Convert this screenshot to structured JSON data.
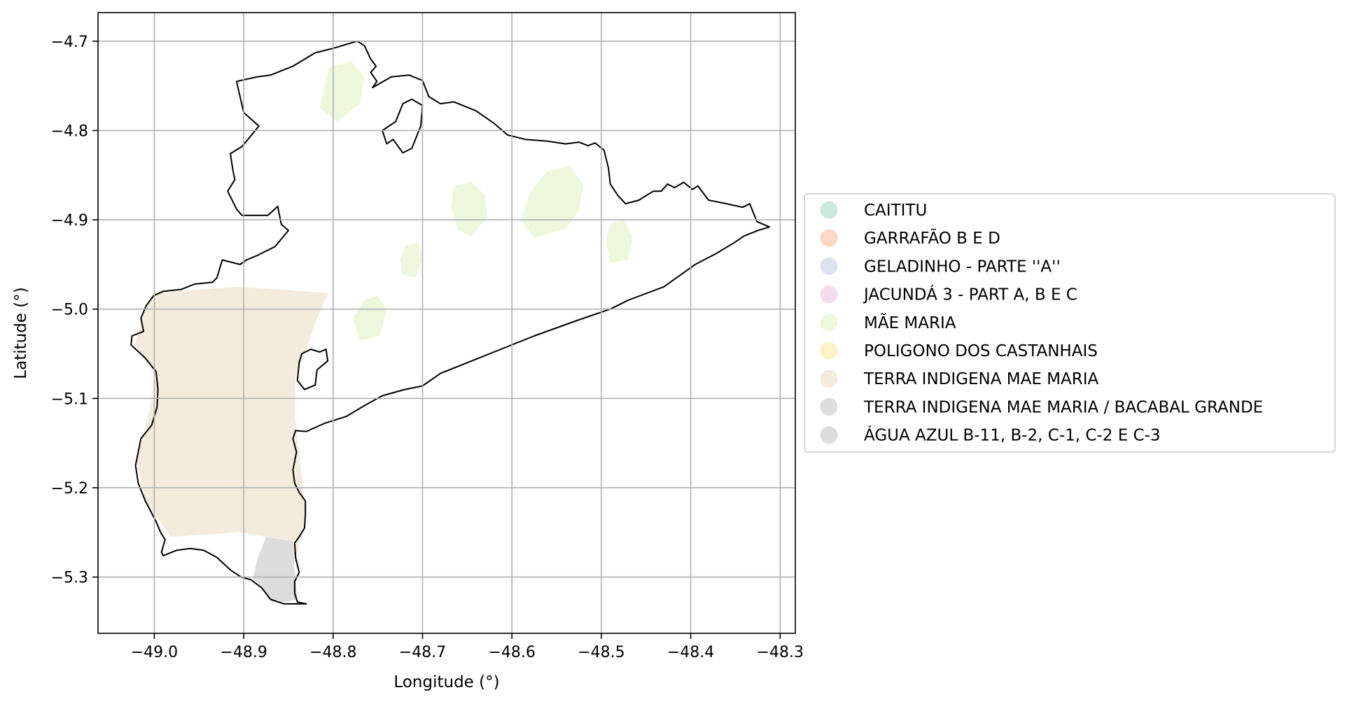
{
  "axes": {
    "xlabel": "Longitude (°)",
    "ylabel": "Latitude (°)",
    "xlim": [
      -49.063,
      -48.283
    ],
    "ylim": [
      -5.363,
      -4.668
    ],
    "x_ticks": [
      -49.0,
      -48.9,
      -48.8,
      -48.7,
      -48.6,
      -48.5,
      -48.4,
      -48.3
    ],
    "y_ticks": [
      -4.7,
      -4.8,
      -4.9,
      -5.0,
      -5.1,
      -5.2,
      -5.3
    ],
    "x_tick_labels": [
      "−49.0",
      "−48.9",
      "−48.8",
      "−48.7",
      "−48.6",
      "−48.5",
      "−48.4",
      "−48.3"
    ],
    "y_tick_labels": [
      "−4.7",
      "−4.8",
      "−4.9",
      "−5.0",
      "−5.1",
      "−5.2",
      "−5.3"
    ],
    "grid": true
  },
  "legend": {
    "placement": "center-right, outside plot",
    "items": [
      {
        "label": "CAITITU",
        "color": "#cbe9db"
      },
      {
        "label": "GARRAFÃO B E D",
        "color": "#fbd9c4"
      },
      {
        "label": "GELADINHO - PARTE ''A''",
        "color": "#dde2ef"
      },
      {
        "label": "JACUNDÁ 3 - PART A, B E C",
        "color": "#f4dcee"
      },
      {
        "label": "MÃE MARIA",
        "color": "#ecf7dc"
      },
      {
        "label": "POLIGONO DOS CASTANHAIS",
        "color": "#fdf3c4"
      },
      {
        "label": "TERRA INDIGENA MAE MARIA",
        "color": "#f5ebdd"
      },
      {
        "label": "TERRA INDIGENA MAE MARIA / BACABAL GRANDE",
        "color": "#dddddd"
      },
      {
        "label": "ÁGUA AZUL B-11, B-2, C-1, C-2 E C-3",
        "color": "#dddddd"
      }
    ]
  },
  "map": {
    "boundary_color": "#000000",
    "boundary": [
      [
        -48.773,
        -4.7
      ],
      [
        -48.765,
        -4.705
      ],
      [
        -48.758,
        -4.72
      ],
      [
        -48.752,
        -4.728
      ],
      [
        -48.758,
        -4.735
      ],
      [
        -48.751,
        -4.745
      ],
      [
        -48.756,
        -4.752
      ],
      [
        -48.735,
        -4.74
      ],
      [
        -48.715,
        -4.738
      ],
      [
        -48.7,
        -4.744
      ],
      [
        -48.693,
        -4.762
      ],
      [
        -48.68,
        -4.77
      ],
      [
        -48.665,
        -4.768
      ],
      [
        -48.64,
        -4.778
      ],
      [
        -48.62,
        -4.792
      ],
      [
        -48.605,
        -4.805
      ],
      [
        -48.585,
        -4.81
      ],
      [
        -48.56,
        -4.812
      ],
      [
        -48.54,
        -4.815
      ],
      [
        -48.525,
        -4.813
      ],
      [
        -48.515,
        -4.817
      ],
      [
        -48.507,
        -4.814
      ],
      [
        -48.497,
        -4.822
      ],
      [
        -48.492,
        -4.842
      ],
      [
        -48.49,
        -4.86
      ],
      [
        -48.486,
        -4.866
      ],
      [
        -48.482,
        -4.872
      ],
      [
        -48.473,
        -4.882
      ],
      [
        -48.458,
        -4.878
      ],
      [
        -48.442,
        -4.868
      ],
      [
        -48.433,
        -4.868
      ],
      [
        -48.426,
        -4.86
      ],
      [
        -48.418,
        -4.864
      ],
      [
        -48.408,
        -4.858
      ],
      [
        -48.398,
        -4.866
      ],
      [
        -48.392,
        -4.862
      ],
      [
        -48.38,
        -4.878
      ],
      [
        -48.36,
        -4.882
      ],
      [
        -48.342,
        -4.886
      ],
      [
        -48.334,
        -4.882
      ],
      [
        -48.326,
        -4.902
      ],
      [
        -48.312,
        -4.908
      ],
      [
        -48.325,
        -4.912
      ],
      [
        -48.34,
        -4.918
      ],
      [
        -48.352,
        -4.926
      ],
      [
        -48.372,
        -4.938
      ],
      [
        -48.395,
        -4.95
      ],
      [
        -48.43,
        -4.975
      ],
      [
        -48.47,
        -4.99
      ],
      [
        -48.49,
        -5.0
      ],
      [
        -48.525,
        -5.012
      ],
      [
        -48.575,
        -5.03
      ],
      [
        -48.625,
        -5.05
      ],
      [
        -48.68,
        -5.072
      ],
      [
        -48.7,
        -5.086
      ],
      [
        -48.72,
        -5.09
      ],
      [
        -48.745,
        -5.097
      ],
      [
        -48.765,
        -5.108
      ],
      [
        -48.785,
        -5.12
      ],
      [
        -48.81,
        -5.128
      ],
      [
        -48.83,
        -5.137
      ],
      [
        -48.842,
        -5.136
      ],
      [
        -48.845,
        -5.145
      ],
      [
        -48.841,
        -5.16
      ],
      [
        -48.845,
        -5.18
      ],
      [
        -48.843,
        -5.195
      ],
      [
        -48.838,
        -5.205
      ],
      [
        -48.831,
        -5.215
      ],
      [
        -48.831,
        -5.23
      ],
      [
        -48.832,
        -5.245
      ],
      [
        -48.838,
        -5.255
      ],
      [
        -48.843,
        -5.262
      ],
      [
        -48.842,
        -5.278
      ],
      [
        -48.838,
        -5.295
      ],
      [
        -48.843,
        -5.305
      ],
      [
        -48.843,
        -5.318
      ],
      [
        -48.84,
        -5.328
      ],
      [
        -48.83,
        -5.33
      ],
      [
        -48.855,
        -5.33
      ],
      [
        -48.87,
        -5.325
      ],
      [
        -48.88,
        -5.312
      ],
      [
        -48.892,
        -5.303
      ],
      [
        -48.903,
        -5.3
      ],
      [
        -48.915,
        -5.292
      ],
      [
        -48.93,
        -5.278
      ],
      [
        -48.945,
        -5.27
      ],
      [
        -48.96,
        -5.268
      ],
      [
        -48.975,
        -5.27
      ],
      [
        -48.99,
        -5.276
      ],
      [
        -48.992,
        -5.272
      ],
      [
        -48.988,
        -5.258
      ],
      [
        -48.993,
        -5.25
      ],
      [
        -48.998,
        -5.238
      ],
      [
        -49.01,
        -5.215
      ],
      [
        -49.018,
        -5.195
      ],
      [
        -49.021,
        -5.175
      ],
      [
        -49.015,
        -5.145
      ],
      [
        -49.003,
        -5.13
      ],
      [
        -48.997,
        -5.11
      ],
      [
        -48.996,
        -5.09
      ],
      [
        -48.998,
        -5.07
      ],
      [
        -49.01,
        -5.055
      ],
      [
        -49.026,
        -5.04
      ],
      [
        -49.025,
        -5.03
      ],
      [
        -49.012,
        -5.025
      ],
      [
        -49.015,
        -5.01
      ],
      [
        -49.009,
        -4.996
      ],
      [
        -49.001,
        -4.985
      ],
      [
        -48.99,
        -4.98
      ],
      [
        -48.97,
        -4.978
      ],
      [
        -48.955,
        -4.972
      ],
      [
        -48.935,
        -4.97
      ],
      [
        -48.93,
        -4.965
      ],
      [
        -48.924,
        -4.945
      ],
      [
        -48.904,
        -4.95
      ],
      [
        -48.897,
        -4.945
      ],
      [
        -48.885,
        -4.94
      ],
      [
        -48.865,
        -4.93
      ],
      [
        -48.85,
        -4.912
      ],
      [
        -48.858,
        -4.905
      ],
      [
        -48.862,
        -4.885
      ],
      [
        -48.873,
        -4.895
      ],
      [
        -48.902,
        -4.895
      ],
      [
        -48.908,
        -4.888
      ],
      [
        -48.912,
        -4.88
      ],
      [
        -48.918,
        -4.868
      ],
      [
        -48.91,
        -4.855
      ],
      [
        -48.912,
        -4.845
      ],
      [
        -48.915,
        -4.826
      ],
      [
        -48.902,
        -4.818
      ],
      [
        -48.897,
        -4.812
      ],
      [
        -48.883,
        -4.795
      ],
      [
        -48.9,
        -4.78
      ],
      [
        -48.908,
        -4.745
      ],
      [
        -48.885,
        -4.74
      ],
      [
        -48.87,
        -4.738
      ],
      [
        -48.845,
        -4.728
      ],
      [
        -48.82,
        -4.713
      ],
      [
        -48.8,
        -4.708
      ],
      [
        -48.773,
        -4.7
      ]
    ],
    "holes": [
      [
        [
          -48.73,
          -4.79
        ],
        [
          -48.722,
          -4.77
        ],
        [
          -48.712,
          -4.765
        ],
        [
          -48.7,
          -4.772
        ],
        [
          -48.702,
          -4.795
        ],
        [
          -48.712,
          -4.82
        ],
        [
          -48.722,
          -4.825
        ],
        [
          -48.733,
          -4.81
        ],
        [
          -48.74,
          -4.815
        ],
        [
          -48.745,
          -4.8
        ],
        [
          -48.73,
          -4.79
        ]
      ],
      [
        [
          -48.835,
          -5.05
        ],
        [
          -48.825,
          -5.045
        ],
        [
          -48.815,
          -5.048
        ],
        [
          -48.808,
          -5.045
        ],
        [
          -48.806,
          -5.058
        ],
        [
          -48.818,
          -5.068
        ],
        [
          -48.82,
          -5.085
        ],
        [
          -48.832,
          -5.09
        ],
        [
          -48.84,
          -5.08
        ],
        [
          -48.838,
          -5.06
        ],
        [
          -48.835,
          -5.05
        ]
      ]
    ],
    "regions": [
      {
        "label": "TERRA INDIGENA MAE MARIA",
        "color": "#f5ebdd",
        "polygon": [
          [
            -49.001,
            -4.982
          ],
          [
            -48.905,
            -4.975
          ],
          [
            -48.805,
            -4.982
          ],
          [
            -48.82,
            -5.015
          ],
          [
            -48.83,
            -5.045
          ],
          [
            -48.842,
            -5.075
          ],
          [
            -48.843,
            -5.12
          ],
          [
            -48.836,
            -5.18
          ],
          [
            -48.83,
            -5.23
          ],
          [
            -48.842,
            -5.28
          ],
          [
            -48.845,
            -5.318
          ],
          [
            -48.84,
            -5.325
          ],
          [
            -48.845,
            -5.26
          ],
          [
            -48.905,
            -5.25
          ],
          [
            -48.982,
            -5.255
          ],
          [
            -49.01,
            -5.215
          ],
          [
            -49.02,
            -5.17
          ],
          [
            -49.008,
            -5.125
          ],
          [
            -48.998,
            -5.075
          ],
          [
            -49.022,
            -5.04
          ],
          [
            -49.012,
            -5.005
          ],
          [
            -49.001,
            -4.982
          ]
        ]
      },
      {
        "label": "TERRA INDIGENA MAE MARIA / BACABAL GRANDE",
        "color": "#dddddd",
        "polygon": [
          [
            -48.875,
            -5.255
          ],
          [
            -48.845,
            -5.26
          ],
          [
            -48.843,
            -5.3
          ],
          [
            -48.84,
            -5.325
          ],
          [
            -48.855,
            -5.328
          ],
          [
            -48.87,
            -5.325
          ],
          [
            -48.88,
            -5.31
          ],
          [
            -48.89,
            -5.302
          ],
          [
            -48.885,
            -5.28
          ],
          [
            -48.875,
            -5.255
          ]
        ]
      },
      {
        "label": "MÃE MARIA",
        "color": "#ecf7dc",
        "polygon": [
          [
            -48.56,
            -4.845
          ],
          [
            -48.535,
            -4.84
          ],
          [
            -48.52,
            -4.86
          ],
          [
            -48.525,
            -4.89
          ],
          [
            -48.54,
            -4.91
          ],
          [
            -48.575,
            -4.92
          ],
          [
            -48.59,
            -4.9
          ],
          [
            -48.58,
            -4.87
          ],
          [
            -48.56,
            -4.845
          ]
        ]
      },
      {
        "label": "MÃE MARIA",
        "color": "#ecf7dc",
        "polygon": [
          [
            -48.665,
            -4.862
          ],
          [
            -48.645,
            -4.858
          ],
          [
            -48.63,
            -4.872
          ],
          [
            -48.628,
            -4.898
          ],
          [
            -48.645,
            -4.918
          ],
          [
            -48.66,
            -4.912
          ],
          [
            -48.668,
            -4.885
          ],
          [
            -48.665,
            -4.862
          ]
        ]
      },
      {
        "label": "MÃE MARIA",
        "color": "#ecf7dc",
        "polygon": [
          [
            -48.805,
            -4.73
          ],
          [
            -48.78,
            -4.722
          ],
          [
            -48.765,
            -4.74
          ],
          [
            -48.77,
            -4.77
          ],
          [
            -48.795,
            -4.79
          ],
          [
            -48.815,
            -4.775
          ],
          [
            -48.805,
            -4.73
          ]
        ]
      },
      {
        "label": "MÃE MARIA",
        "color": "#ecf7dc",
        "polygon": [
          [
            -48.765,
            -4.99
          ],
          [
            -48.75,
            -4.985
          ],
          [
            -48.74,
            -5.0
          ],
          [
            -48.748,
            -5.03
          ],
          [
            -48.77,
            -5.035
          ],
          [
            -48.778,
            -5.01
          ],
          [
            -48.765,
            -4.99
          ]
        ]
      },
      {
        "label": "MÃE MARIA",
        "color": "#ecf7dc",
        "polygon": [
          [
            -48.49,
            -4.905
          ],
          [
            -48.475,
            -4.9
          ],
          [
            -48.465,
            -4.92
          ],
          [
            -48.47,
            -4.945
          ],
          [
            -48.49,
            -4.948
          ],
          [
            -48.495,
            -4.925
          ],
          [
            -48.49,
            -4.905
          ]
        ]
      },
      {
        "label": "MÃE MARIA",
        "color": "#ecf7dc",
        "polygon": [
          [
            -48.72,
            -4.93
          ],
          [
            -48.705,
            -4.925
          ],
          [
            -48.7,
            -4.945
          ],
          [
            -48.708,
            -4.965
          ],
          [
            -48.722,
            -4.962
          ],
          [
            -48.725,
            -4.945
          ],
          [
            -48.72,
            -4.93
          ]
        ]
      }
    ]
  }
}
